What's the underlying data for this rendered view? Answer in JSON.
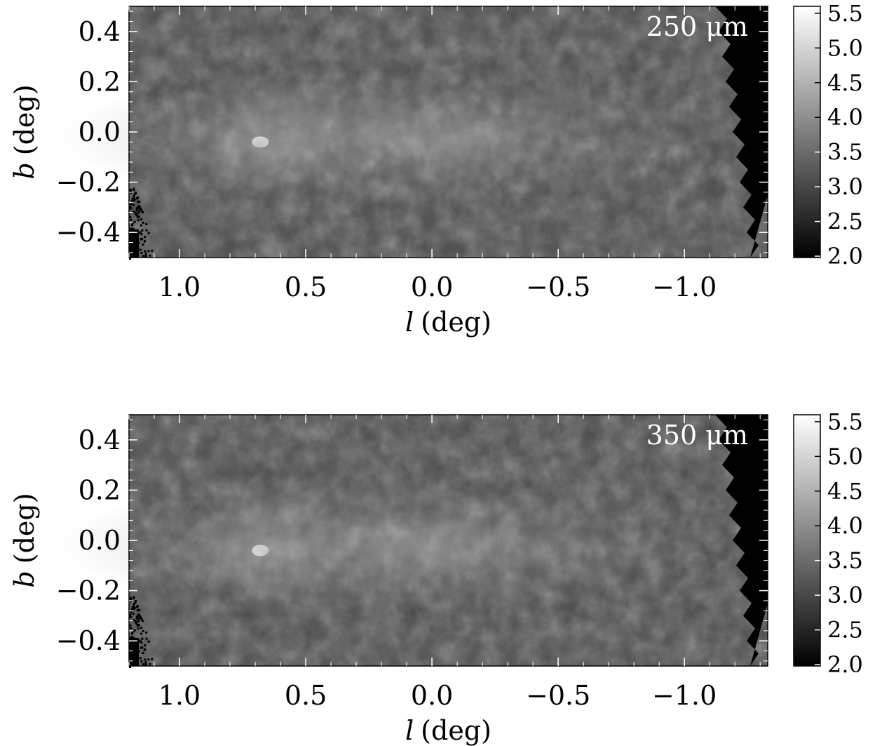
{
  "chart_data": [
    {
      "type": "heatmap",
      "band_label": "250 μm",
      "xlabel_symbol": "l",
      "xlabel_unit": "(deg)",
      "ylabel_symbol": "b",
      "ylabel_unit": "(deg)",
      "xlim": [
        1.2,
        -1.33
      ],
      "ylim": [
        -0.5,
        0.5
      ],
      "xticks": [
        1.0,
        0.5,
        0.0,
        -0.5,
        -1.0
      ],
      "xtick_labels": [
        "1.0",
        "0.5",
        "0.0",
        "−0.5",
        "−1.0"
      ],
      "yticks": [
        0.4,
        0.2,
        0.0,
        -0.2,
        -0.4
      ],
      "ytick_labels": [
        "0.4",
        "0.2",
        "0.0",
        "−0.2",
        "−0.4"
      ],
      "colorbar": {
        "range": [
          1.98,
          5.6
        ],
        "ticks": [
          5.5,
          5.0,
          4.5,
          4.0,
          3.5,
          3.0,
          2.5,
          2.0
        ],
        "tick_labels": [
          "5.5",
          "5.0",
          "4.5",
          "4.0",
          "3.5",
          "3.0",
          "2.5",
          "2.0"
        ],
        "colormap": "grayscale"
      }
    },
    {
      "type": "heatmap",
      "band_label": "350 μm",
      "xlabel_symbol": "l",
      "xlabel_unit": "(deg)",
      "ylabel_symbol": "b",
      "ylabel_unit": "(deg)",
      "xlim": [
        1.2,
        -1.33
      ],
      "ylim": [
        -0.5,
        0.5
      ],
      "xticks": [
        1.0,
        0.5,
        0.0,
        -0.5,
        -1.0
      ],
      "xtick_labels": [
        "1.0",
        "0.5",
        "0.0",
        "−0.5",
        "−1.0"
      ],
      "yticks": [
        0.4,
        0.2,
        0.0,
        -0.2,
        -0.4
      ],
      "ytick_labels": [
        "0.4",
        "0.2",
        "0.0",
        "−0.2",
        "−0.4"
      ],
      "colorbar": {
        "range": [
          1.98,
          5.6
        ],
        "ticks": [
          5.5,
          5.0,
          4.5,
          4.0,
          3.5,
          3.0,
          2.5,
          2.0
        ],
        "tick_labels": [
          "5.5",
          "5.0",
          "4.5",
          "4.0",
          "3.5",
          "3.0",
          "2.5",
          "2.0"
        ],
        "colormap": "grayscale"
      }
    }
  ]
}
